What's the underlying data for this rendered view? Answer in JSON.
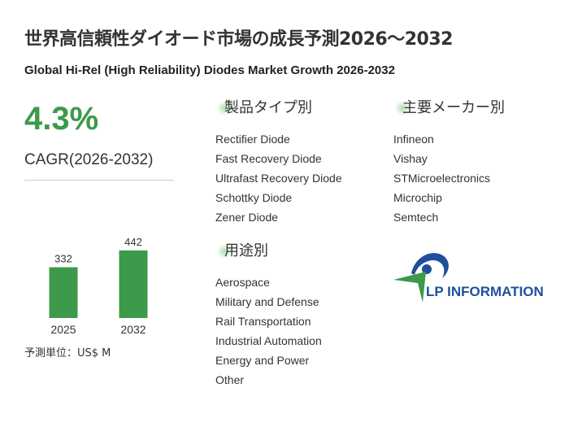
{
  "title": "世界高信頼性ダイオード市場の成長予測2026～2032",
  "subtitle": "Global Hi-Rel (High Reliability) Diodes Market Growth 2026-2032",
  "cagr": {
    "value": "4.3%",
    "label": "CAGR(2026-2032)"
  },
  "chart_data": {
    "type": "bar",
    "categories": [
      "2025",
      "2032"
    ],
    "values": [
      332,
      442
    ],
    "value_labels": [
      "332",
      "442"
    ],
    "unit_note": "予測単位：US$ M",
    "bar_color": "#3c9a4a"
  },
  "sections": {
    "product_type": {
      "title": "製品タイプ別",
      "items": [
        "Rectifier Diode",
        "Fast Recovery Diode",
        "Ultrafast Recovery Diode",
        "Schottky Diode",
        "Zener Diode"
      ]
    },
    "manufacturers": {
      "title": "主要メーカー別",
      "items": [
        "Infineon",
        "Vishay",
        "STMicroelectronics",
        "Microchip",
        "Semtech"
      ]
    },
    "application": {
      "title": "用途別",
      "items": [
        "Aerospace",
        "Military and Defense",
        "Rail Transportation",
        "Industrial Automation",
        "Energy and Power",
        "Other"
      ]
    }
  },
  "logo": {
    "text": "LP INFORMATION",
    "primary_color": "#1f4f9c",
    "accent_color": "#3c9a4a"
  }
}
